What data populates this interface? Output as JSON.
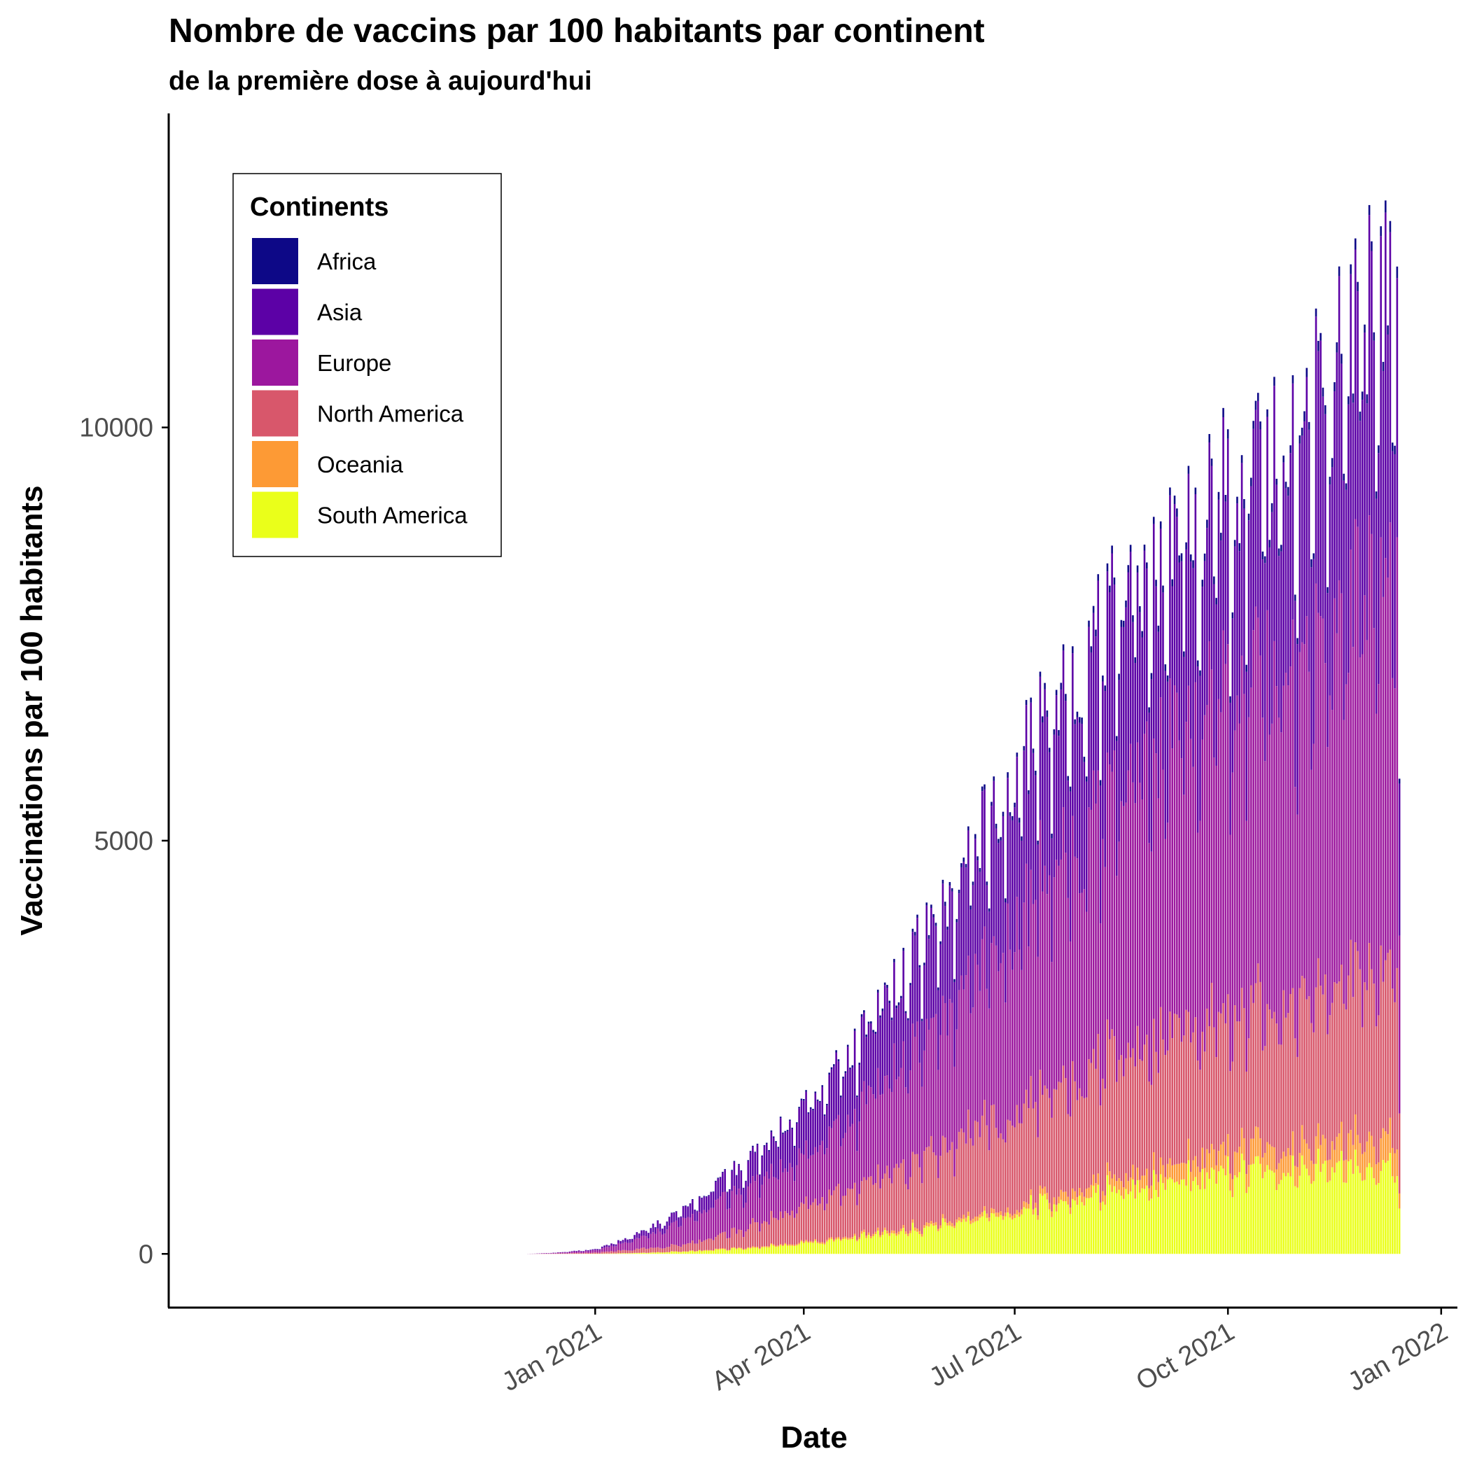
{
  "chart_data": {
    "type": "bar",
    "stacked": true,
    "title": "Nombre de vaccins par 100 habitants par continent",
    "subtitle": "de la première dose à aujourd'hui",
    "xlabel": "Date",
    "ylabel": "Vaccinations par 100 habitants",
    "x_ticks": [
      {
        "label": "Jan 2021",
        "date": "2021-01-01"
      },
      {
        "label": "Apr 2021",
        "date": "2021-04-01"
      },
      {
        "label": "Jul 2021",
        "date": "2021-07-01"
      },
      {
        "label": "Oct 2021",
        "date": "2021-10-01"
      },
      {
        "label": "Jan 2022",
        "date": "2022-01-01"
      }
    ],
    "y_ticks": [
      0,
      5000,
      10000
    ],
    "xlim": [
      "2020-07-01",
      "2022-01-08"
    ],
    "ylim": [
      -650,
      13800
    ],
    "date_range": [
      "2020-12-02",
      "2021-12-14"
    ],
    "grid": false,
    "legend": {
      "title": "Continents",
      "placement": "top-left",
      "entries": [
        "Africa",
        "Asia",
        "Europe",
        "North America",
        "Oceania",
        "South America"
      ]
    },
    "stack_order": [
      "South America",
      "Oceania",
      "North America",
      "Europe",
      "Asia",
      "Africa"
    ],
    "colors": {
      "Africa": "#0d0887",
      "Asia": "#5c01a6",
      "Europe": "#9c179e",
      "North America": "#d8576b",
      "Oceania": "#fd9a35",
      "South America": "#eaff1a"
    },
    "weekly_totals": [
      {
        "date": "2020-12-02",
        "total": 0
      },
      {
        "date": "2020-12-15",
        "total": 15
      },
      {
        "date": "2021-01-01",
        "total": 60
      },
      {
        "date": "2021-01-15",
        "total": 200
      },
      {
        "date": "2021-02-01",
        "total": 450
      },
      {
        "date": "2021-02-15",
        "total": 750
      },
      {
        "date": "2021-03-01",
        "total": 1050
      },
      {
        "date": "2021-03-15",
        "total": 1400
      },
      {
        "date": "2021-04-01",
        "total": 1850
      },
      {
        "date": "2021-04-15",
        "total": 2400
      },
      {
        "date": "2021-05-01",
        "total": 3000
      },
      {
        "date": "2021-05-15",
        "total": 3700
      },
      {
        "date": "2021-06-01",
        "total": 4500
      },
      {
        "date": "2021-06-15",
        "total": 5300
      },
      {
        "date": "2021-07-01",
        "total": 6200
      },
      {
        "date": "2021-07-15",
        "total": 7000
      },
      {
        "date": "2021-08-01",
        "total": 7700
      },
      {
        "date": "2021-08-15",
        "total": 8300
      },
      {
        "date": "2021-09-01",
        "total": 8900
      },
      {
        "date": "2021-09-15",
        "total": 9500
      },
      {
        "date": "2021-10-01",
        "total": 9800
      },
      {
        "date": "2021-10-15",
        "total": 10000
      },
      {
        "date": "2021-11-01",
        "total": 10600
      },
      {
        "date": "2021-11-15",
        "total": 11200
      },
      {
        "date": "2021-12-01",
        "total": 12200
      },
      {
        "date": "2021-12-14",
        "total": 12700
      }
    ],
    "share_waypoints": [
      {
        "date": "2020-12-02",
        "South America": 0.01,
        "Oceania": 0.005,
        "North America": 0.3,
        "Europe": 0.45,
        "Asia": 0.22,
        "Africa": 0.015
      },
      {
        "date": "2021-02-01",
        "South America": 0.05,
        "Oceania": 0.01,
        "North America": 0.15,
        "Europe": 0.55,
        "Asia": 0.23,
        "Africa": 0.01
      },
      {
        "date": "2021-04-01",
        "South America": 0.07,
        "Oceania": 0.01,
        "North America": 0.25,
        "Europe": 0.35,
        "Asia": 0.31,
        "Africa": 0.01
      },
      {
        "date": "2021-07-01",
        "South America": 0.09,
        "Oceania": 0.01,
        "North America": 0.2,
        "Europe": 0.4,
        "Asia": 0.29,
        "Africa": 0.01
      },
      {
        "date": "2021-10-01",
        "South America": 0.11,
        "Oceania": 0.03,
        "North America": 0.18,
        "Europe": 0.43,
        "Asia": 0.24,
        "Africa": 0.01
      },
      {
        "date": "2021-12-14",
        "South America": 0.09,
        "Oceania": 0.03,
        "North America": 0.18,
        "Europe": 0.4,
        "Asia": 0.29,
        "Africa": 0.01
      }
    ],
    "last_day_total": 5750
  }
}
